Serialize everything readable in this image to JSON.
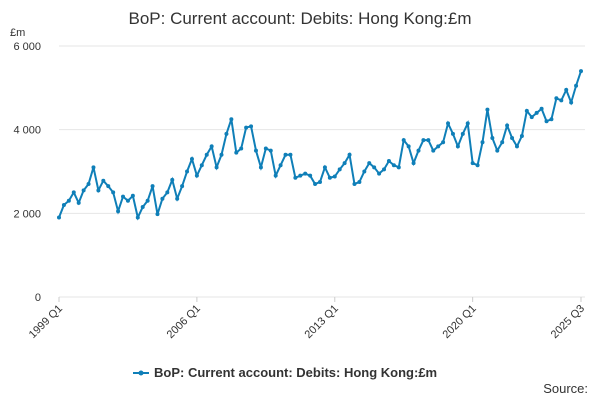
{
  "chart_data": {
    "type": "line",
    "title": "BoP: Current account: Debits: Hong Kong:£m",
    "y_label": "£m",
    "source": "Source:",
    "categories": [
      "1999 Q1",
      null,
      null,
      null,
      null,
      null,
      null,
      null,
      null,
      null,
      null,
      null,
      null,
      null,
      null,
      null,
      null,
      null,
      null,
      null,
      null,
      null,
      null,
      null,
      null,
      null,
      null,
      null,
      "2006 Q1",
      null,
      null,
      null,
      null,
      null,
      null,
      null,
      null,
      null,
      null,
      null,
      null,
      null,
      null,
      null,
      null,
      null,
      null,
      null,
      null,
      null,
      null,
      null,
      null,
      null,
      null,
      null,
      "2013 Q1",
      null,
      null,
      null,
      null,
      null,
      null,
      null,
      null,
      null,
      null,
      null,
      null,
      null,
      null,
      null,
      null,
      null,
      null,
      null,
      null,
      null,
      null,
      null,
      null,
      null,
      null,
      null,
      "2020 Q1",
      null,
      null,
      null,
      null,
      null,
      null,
      null,
      null,
      null,
      null,
      null,
      null,
      null,
      null,
      null,
      null,
      null,
      null,
      null,
      null,
      null,
      "2025 Q3"
    ],
    "series": [
      {
        "name": "BoP: Current account: Debits: Hong Kong:£m",
        "color": "#0f7fb8",
        "values": [
          1900,
          2200,
          2300,
          2500,
          2250,
          2550,
          2700,
          3100,
          2550,
          2780,
          2650,
          2500,
          2050,
          2400,
          2300,
          2420,
          1900,
          2150,
          2300,
          2650,
          1980,
          2350,
          2500,
          2800,
          2350,
          2650,
          3000,
          3300,
          2900,
          3150,
          3400,
          3600,
          3100,
          3400,
          3900,
          4250,
          3450,
          3550,
          4050,
          4080,
          3500,
          3100,
          3550,
          3500,
          2900,
          3150,
          3400,
          3400,
          2850,
          2900,
          2950,
          2900,
          2700,
          2750,
          3100,
          2850,
          2880,
          3050,
          3200,
          3400,
          2700,
          2750,
          3000,
          3200,
          3100,
          2950,
          3050,
          3250,
          3150,
          3100,
          3750,
          3600,
          3200,
          3500,
          3750,
          3750,
          3500,
          3600,
          3700,
          4150,
          3900,
          3600,
          3900,
          4150,
          3200,
          3150,
          3700,
          4480,
          3800,
          3500,
          3700,
          4100,
          3800,
          3600,
          3850,
          4450,
          4300,
          4400,
          4500,
          4200,
          4250,
          4750,
          4700,
          4950,
          4650,
          5050,
          5400
        ]
      }
    ],
    "ylim": [
      0,
      6000
    ],
    "yticks": [
      0,
      {
        "value": 2000,
        "label": "2 000"
      },
      {
        "value": 4000,
        "label": "4 000"
      },
      {
        "value": 6000,
        "label": "6 000"
      }
    ],
    "grid": true
  }
}
